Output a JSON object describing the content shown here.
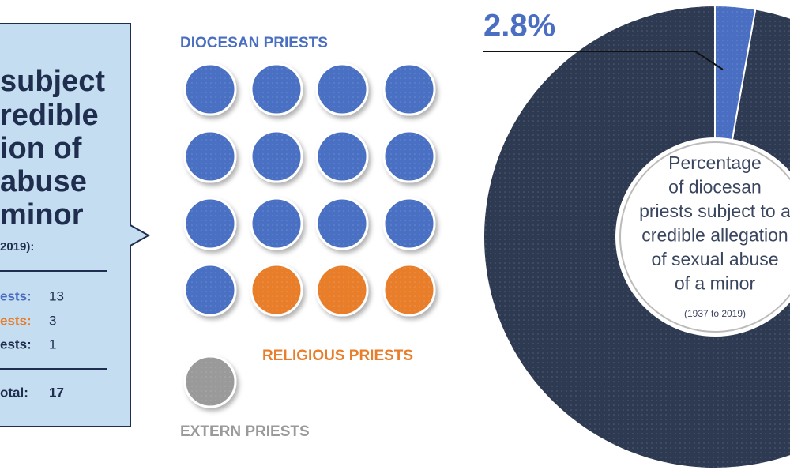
{
  "panel": {
    "title_lines": [
      "subject",
      "redible",
      "ion of",
      "abuse",
      "minor"
    ],
    "subtitle": "2019):",
    "rows": [
      {
        "label": "ests:",
        "value": 13,
        "color": "#4a6fc2"
      },
      {
        "label": "ests:",
        "value": 3,
        "color": "#e87d2a"
      },
      {
        "label": "ests:",
        "value": 1,
        "color": "#1f2d4e"
      }
    ],
    "total": {
      "label": "otal:",
      "value": 17
    }
  },
  "dots": {
    "groups": [
      {
        "name": "DIOCESAN PRIESTS",
        "color": "#4a6fc2"
      },
      {
        "name": "RELIGIOUS PRIESTS",
        "color": "#e87d2a"
      },
      {
        "name": "EXTERN PRIESTS",
        "color": "#9a9a9a"
      }
    ]
  },
  "donut": {
    "value": 2.8,
    "value_label": "2.8%",
    "colors": [
      "#4a6fc2",
      "#2d3a52"
    ],
    "center_text": [
      "Percentage",
      "of diocesan",
      "priests subject to a",
      "credible allegation",
      "of sexual abuse",
      "of a minor"
    ],
    "note": "(1937 to 2019)"
  }
}
